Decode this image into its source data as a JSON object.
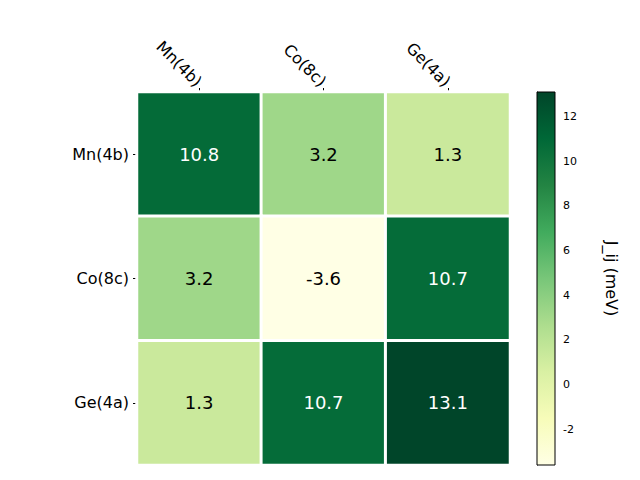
{
  "chart_data": {
    "type": "heatmap",
    "x_categories": [
      "Mn(4b)",
      "Co(8c)",
      "Ge(4a)"
    ],
    "y_categories": [
      "Mn(4b)",
      "Co(8c)",
      "Ge(4a)"
    ],
    "cells": [
      [
        10.8,
        3.2,
        1.3
      ],
      [
        3.2,
        -3.6,
        10.7
      ],
      [
        1.3,
        10.7,
        13.1
      ]
    ],
    "data_labels": true,
    "colorbar": {
      "label": "J_ij (meV)",
      "range": [
        -3.6,
        13.1
      ],
      "ticks": [
        -2,
        0,
        2,
        4,
        6,
        8,
        10,
        12
      ]
    }
  }
}
